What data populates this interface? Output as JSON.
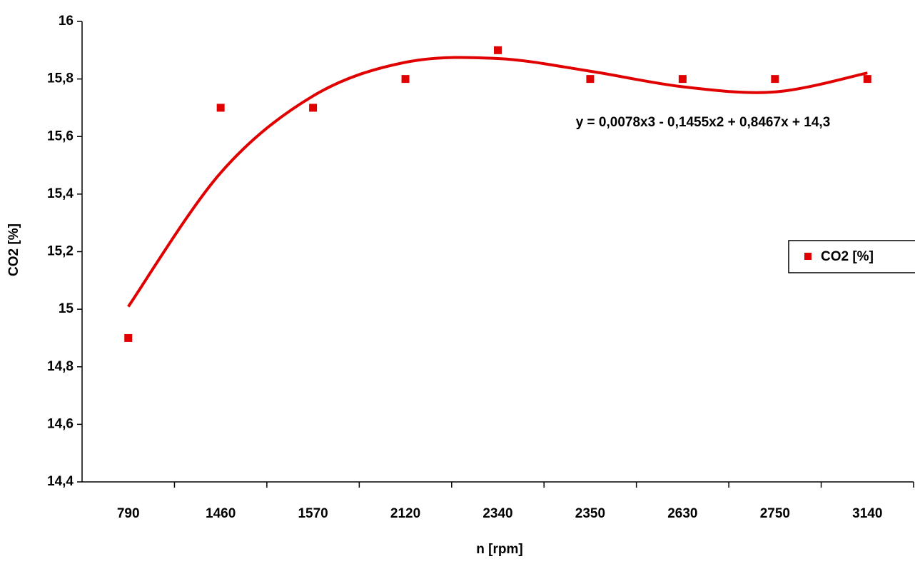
{
  "chart_data": {
    "type": "scatter",
    "x_label": "n [rpm]",
    "y_label": "CO2 [%]",
    "categories": [
      "790",
      "1460",
      "1570",
      "2120",
      "2340",
      "2350",
      "2630",
      "2750",
      "3140"
    ],
    "series": [
      {
        "name": "CO2 [%]",
        "color": "#e00000",
        "values": [
          14.9,
          15.7,
          15.7,
          15.8,
          15.9,
          15.8,
          15.8,
          15.8,
          15.8
        ]
      }
    ],
    "trendline": {
      "type": "polynomial",
      "color": "#e00000",
      "equation": "y = 0,0078x3 - 0,1455x2 + 0,8467x + 14,3",
      "values": [
        15.009,
        15.474,
        15.741,
        15.858,
        15.871,
        15.827,
        15.773,
        15.755,
        15.821
      ]
    },
    "ylim": [
      14.4,
      16
    ],
    "yticks": [
      {
        "value": 14.4,
        "label": "14,4"
      },
      {
        "value": 14.6,
        "label": "14,6"
      },
      {
        "value": 14.8,
        "label": "14,8"
      },
      15,
      {
        "value": 15.2,
        "label": "15,2"
      },
      {
        "value": 15.4,
        "label": "15,4"
      },
      {
        "value": 15.6,
        "label": "15,6"
      },
      {
        "value": 15.8,
        "label": "15,8"
      },
      16
    ],
    "grid": false,
    "legend": "right"
  }
}
